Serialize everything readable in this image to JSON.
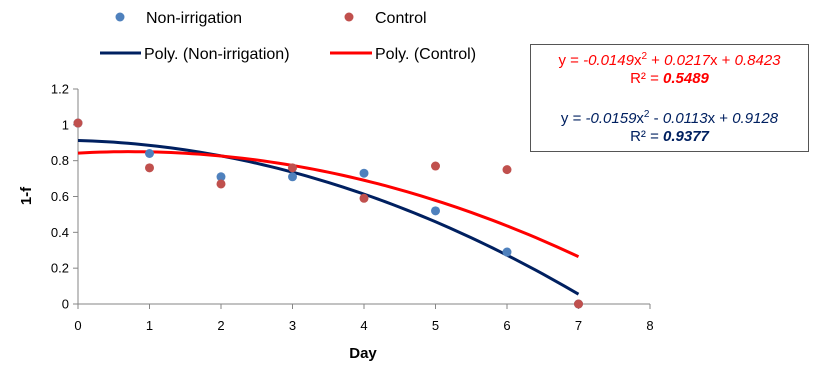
{
  "chart_data": {
    "type": "scatter",
    "xlabel": "Day",
    "ylabel": "1-f",
    "xlim": [
      0,
      8
    ],
    "ylim": [
      0,
      1.2
    ],
    "xticks": [
      "0",
      "1",
      "2",
      "3",
      "4",
      "5",
      "6",
      "7",
      "8"
    ],
    "yticks": [
      "0",
      "0.2",
      "0.4",
      "0.6",
      "0.8",
      "1",
      "1.2"
    ],
    "grid": false,
    "legend_position": "top",
    "series": [
      {
        "name": "Non-irrigation",
        "color": "#4f81bd",
        "points": [
          {
            "x": 0,
            "y": 1.01
          },
          {
            "x": 1,
            "y": 0.84
          },
          {
            "x": 2,
            "y": 0.71
          },
          {
            "x": 3,
            "y": 0.71
          },
          {
            "x": 4,
            "y": 0.73
          },
          {
            "x": 5,
            "y": 0.52
          },
          {
            "x": 6,
            "y": 0.29
          },
          {
            "x": 7,
            "y": 0.0
          }
        ]
      },
      {
        "name": "Control",
        "color": "#c0504d",
        "points": [
          {
            "x": 0,
            "y": 1.01
          },
          {
            "x": 1,
            "y": 0.76
          },
          {
            "x": 2,
            "y": 0.67
          },
          {
            "x": 3,
            "y": 0.76
          },
          {
            "x": 4,
            "y": 0.59
          },
          {
            "x": 5,
            "y": 0.77
          },
          {
            "x": 6,
            "y": 0.75
          },
          {
            "x": 7,
            "y": 0.0
          }
        ]
      }
    ],
    "trendlines": [
      {
        "name": "Poly. (Non-irrigation)",
        "color": "#002060",
        "coefficients": [
          -0.0159,
          -0.0113,
          0.9128
        ],
        "x_range": [
          0,
          7
        ],
        "equation": {
          "prefix": "y = ",
          "a": "-0.0159",
          "x2": "x",
          "sup": "2",
          "mid": " - ",
          "b": "0.0113",
          "x1": "x + ",
          "c": "0.9128"
        },
        "r2": {
          "label": "R² = ",
          "value": "0.9377"
        }
      },
      {
        "name": "Poly. (Control)",
        "color": "#ff0000",
        "coefficients": [
          -0.0149,
          0.0217,
          0.8423
        ],
        "x_range": [
          0,
          7
        ],
        "equation": {
          "prefix": "y = ",
          "a": "-0.0149",
          "x2": "x",
          "sup": "2",
          "mid": " + ",
          "b": "0.0217",
          "x1": "x + ",
          "c": "0.8423"
        },
        "r2": {
          "label": "R² = ",
          "value": "0.5489"
        }
      }
    ]
  },
  "equation_box": {
    "control_color": "#ff0000",
    "nonirr_color": "#002060"
  }
}
